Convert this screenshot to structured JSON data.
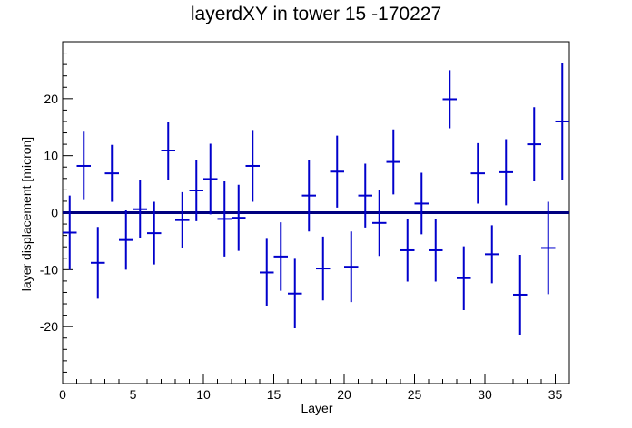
{
  "chart_data": {
    "type": "scatter",
    "title": "layerdXY in tower 15 -170227",
    "xlabel": "Layer",
    "ylabel": "layer displacement [micron]",
    "xlim": [
      0,
      36
    ],
    "ylim": [
      -30,
      30
    ],
    "x_ticks": [
      0,
      5,
      10,
      15,
      20,
      25,
      30,
      35
    ],
    "y_ticks": [
      -20,
      -10,
      0,
      10,
      20
    ],
    "x_tick_labels": [
      "0",
      "5",
      "10",
      "15",
      "20",
      "25",
      "30",
      "35"
    ],
    "y_tick_labels": [
      "-20",
      "-10",
      "0",
      "10",
      "20"
    ],
    "reference_line": 0,
    "grid": false,
    "series_color": "#0000cc",
    "reference_color": "#000080",
    "points": [
      {
        "x": 0.5,
        "y": -3.5,
        "err": 6.5
      },
      {
        "x": 1.5,
        "y": 8.2,
        "err": 6
      },
      {
        "x": 2.5,
        "y": -8.8,
        "err": 6.3
      },
      {
        "x": 3.5,
        "y": 6.9,
        "err": 5
      },
      {
        "x": 4.5,
        "y": -4.8,
        "err": 5.2
      },
      {
        "x": 5.5,
        "y": 0.6,
        "err": 5.1
      },
      {
        "x": 6.5,
        "y": -3.6,
        "err": 5.5
      },
      {
        "x": 7.5,
        "y": 10.9,
        "err": 5.1
      },
      {
        "x": 8.5,
        "y": -1.3,
        "err": 4.9
      },
      {
        "x": 9.5,
        "y": 3.9,
        "err": 5.4
      },
      {
        "x": 10.5,
        "y": 5.9,
        "err": 6.2
      },
      {
        "x": 11.5,
        "y": -1.1,
        "err": 6.6
      },
      {
        "x": 12.5,
        "y": -0.9,
        "err": 5.8
      },
      {
        "x": 13.5,
        "y": 8.2,
        "err": 6.3
      },
      {
        "x": 14.5,
        "y": -10.5,
        "err": 5.9
      },
      {
        "x": 15.5,
        "y": -7.7,
        "err": 6
      },
      {
        "x": 16.5,
        "y": -14.2,
        "err": 6.1
      },
      {
        "x": 17.5,
        "y": 3,
        "err": 6.3
      },
      {
        "x": 18.5,
        "y": -9.8,
        "err": 5.6
      },
      {
        "x": 19.5,
        "y": 7.2,
        "err": 6.3
      },
      {
        "x": 20.5,
        "y": -9.5,
        "err": 6.2
      },
      {
        "x": 21.5,
        "y": 3,
        "err": 5.6
      },
      {
        "x": 22.5,
        "y": -1.8,
        "err": 5.8
      },
      {
        "x": 23.5,
        "y": 8.9,
        "err": 5.7
      },
      {
        "x": 24.5,
        "y": -6.6,
        "err": 5.5
      },
      {
        "x": 25.5,
        "y": 1.6,
        "err": 5.4
      },
      {
        "x": 26.5,
        "y": -6.6,
        "err": 5.5
      },
      {
        "x": 27.5,
        "y": 19.9,
        "err": 5.1
      },
      {
        "x": 28.5,
        "y": -11.5,
        "err": 5.6
      },
      {
        "x": 29.5,
        "y": 6.9,
        "err": 5.3
      },
      {
        "x": 30.5,
        "y": -7.3,
        "err": 5.1
      },
      {
        "x": 31.5,
        "y": 7.1,
        "err": 5.8
      },
      {
        "x": 32.5,
        "y": -14.4,
        "err": 7
      },
      {
        "x": 33.5,
        "y": 12,
        "err": 6.5
      },
      {
        "x": 34.5,
        "y": -6.2,
        "err": 8.1
      },
      {
        "x": 35.5,
        "y": 16,
        "err": 10.2
      }
    ]
  }
}
